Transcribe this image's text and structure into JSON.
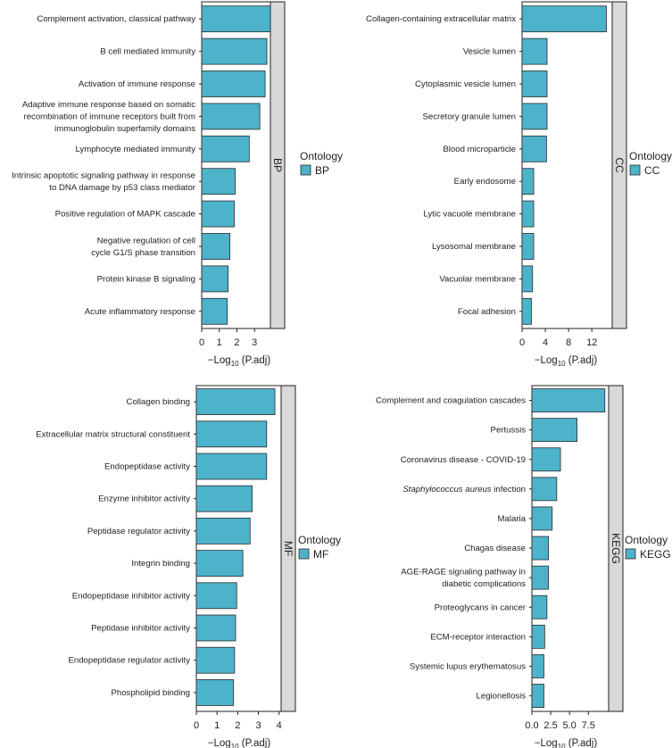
{
  "legend_title": "Ontology",
  "colors": {
    "bar": "#4DB3CB",
    "bar_stroke": "#2a2a2a",
    "strip": "#D9D9D9",
    "axis": "#222222"
  },
  "chart_data": [
    {
      "id": "bp",
      "type": "bar",
      "orientation": "horizontal",
      "facet_label": "BP",
      "legend_label": "BP",
      "categories": [
        "Complement activation, classical pathway",
        "B cell mediated immunity",
        "Activation of immune response",
        "Adaptive immune response based on somatic recombination of immune receptors built from immunoglobulin superfamily domains",
        "Lymphocyte mediated immunity",
        "Intrinsic apoptotic signaling pathway in response to DNA damage by p53 class mediator",
        "Positive regulation of MAPK cascade",
        "Negative regulation of cell cycle G1/S phase transition",
        "Protein kinase B signaling",
        "Acute inflammatory response"
      ],
      "category_lines": [
        [
          "Complement activation, classical pathway"
        ],
        [
          "B cell mediated immunity"
        ],
        [
          "Activation of immune response"
        ],
        [
          "Adaptive immune response based on somatic",
          "recombination of immune receptors built from",
          "immunoglobulin superfamily domains"
        ],
        [
          "Lymphocyte mediated immunity"
        ],
        [
          "Intrinsic apoptotic signaling pathway in response",
          "to DNA damage by p53 class mediator"
        ],
        [
          "Positive regulation of MAPK cascade"
        ],
        [
          "Negative regulation of cell",
          "cycle G1/S phase transition"
        ],
        [
          "Protein kinase B signaling"
        ],
        [
          "Acute inflammatory response"
        ]
      ],
      "values": [
        3.9,
        3.7,
        3.6,
        3.3,
        2.7,
        1.9,
        1.85,
        1.6,
        1.5,
        1.45
      ],
      "xlim": [
        0,
        3.9
      ],
      "ticks": [
        0,
        1,
        2,
        3
      ],
      "xlabel_prefix": "−Log",
      "xlabel_sub": "10",
      "xlabel_suffix": " (P.adj)"
    },
    {
      "id": "cc",
      "type": "bar",
      "orientation": "horizontal",
      "facet_label": "CC",
      "legend_label": "CC",
      "categories": [
        "Collagen-containing extracellular matrix",
        "Vesicle lumen",
        "Cytoplasmic vesicle lumen",
        "Secretory granule lumen",
        "Blood microparticle",
        "Early endosome",
        "Lytic vacuole membrane",
        "Lysosomal membrane",
        "Vacuolar membrane",
        "Focal adhesion"
      ],
      "category_lines": [
        [
          "Collagen-containing extracellular matrix"
        ],
        [
          "Vesicle lumen"
        ],
        [
          "Cytoplasmic vesicle lumen"
        ],
        [
          "Secretory granule lumen"
        ],
        [
          "Blood microparticle"
        ],
        [
          "Early endosome"
        ],
        [
          "Lytic vacuole membrane"
        ],
        [
          "Lysosomal membrane"
        ],
        [
          "Vacuolar membrane"
        ],
        [
          "Focal adhesion"
        ]
      ],
      "values": [
        14.5,
        4.3,
        4.3,
        4.3,
        4.2,
        2.0,
        2.0,
        2.0,
        1.8,
        1.6
      ],
      "xlim": [
        0,
        15.5
      ],
      "ticks": [
        0,
        4,
        8,
        12
      ],
      "xlabel_prefix": "−Log",
      "xlabel_sub": "10",
      "xlabel_suffix": " (P.adj)"
    },
    {
      "id": "mf",
      "type": "bar",
      "orientation": "horizontal",
      "facet_label": "MF",
      "legend_label": "MF",
      "categories": [
        "Collagen binding",
        "Extracellular matrix structural constituent",
        "Endopeptidase activity",
        "Enzyme inhibitor activity",
        "Peptidase regulator activity",
        "Integrin binding",
        "Endopeptidase inhibitor activity",
        "Peptidase inhibitor activity",
        "Endopeptidase regulator activity",
        "Phospholipid binding"
      ],
      "category_lines": [
        [
          "Collagen binding"
        ],
        [
          "Extracellular matrix structural constituent"
        ],
        [
          "Endopeptidase activity"
        ],
        [
          "Enzyme inhibitor activity"
        ],
        [
          "Peptidase regulator activity"
        ],
        [
          "Integrin binding"
        ],
        [
          "Endopeptidase inhibitor activity"
        ],
        [
          "Peptidase inhibitor activity"
        ],
        [
          "Endopeptidase regulator activity"
        ],
        [
          "Phospholipid binding"
        ]
      ],
      "values": [
        3.8,
        3.4,
        3.4,
        2.7,
        2.6,
        2.25,
        1.95,
        1.9,
        1.85,
        1.8
      ],
      "xlim": [
        0,
        4.1
      ],
      "ticks": [
        0,
        1,
        2,
        3,
        4
      ],
      "xlabel_prefix": "−Log",
      "xlabel_sub": "10",
      "xlabel_suffix": " (P.adj)"
    },
    {
      "id": "kegg",
      "type": "bar",
      "orientation": "horizontal",
      "facet_label": "KEGG",
      "legend_label": "KEGG",
      "categories": [
        "Complement and coagulation cascades",
        "Pertussis",
        "Coronavirus disease - COVID-19",
        "Staphylococcus aureus infection",
        "Malaria",
        "Chagas disease",
        "AGE-RAGE signaling pathway in diabetic complications",
        "Proteoglycans in cancer",
        "ECM-receptor interaction",
        "Systemic lupus erythematosus",
        "Legionellosis"
      ],
      "category_lines": [
        [
          "Complement and coagulation cascades"
        ],
        [
          "Pertussis"
        ],
        [
          "Coronavirus disease - COVID-19"
        ],
        [
          "Staphylococcus aureus infection"
        ],
        [
          "Malaria"
        ],
        [
          "Chagas disease"
        ],
        [
          "AGE-RAGE signaling pathway in",
          "diabetic complications"
        ],
        [
          "Proteoglycans in cancer"
        ],
        [
          "ECM-receptor interaction"
        ],
        [
          "Systemic lupus erythematosus"
        ],
        [
          "Legionellosis"
        ]
      ],
      "italic_prefix": {
        "3": "Staphylococcus aureus"
      },
      "values": [
        9.7,
        6.0,
        3.8,
        3.3,
        2.7,
        2.2,
        2.2,
        2.0,
        1.7,
        1.6,
        1.6
      ],
      "xlim": [
        0,
        10.2
      ],
      "ticks": [
        0,
        2.5,
        5,
        7.5
      ],
      "tick_labels": [
        "0.0",
        "2.5",
        "5.0",
        "7.5"
      ],
      "xlabel_prefix": "−Log",
      "xlabel_sub": "10",
      "xlabel_suffix": " (P.adj)"
    }
  ]
}
